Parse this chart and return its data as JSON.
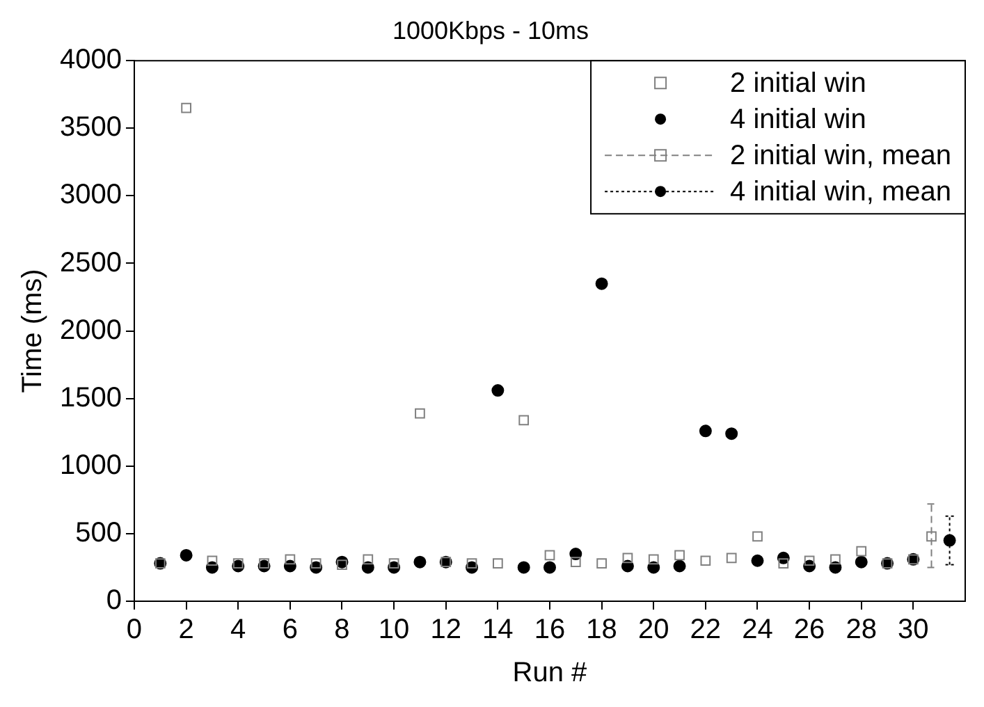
{
  "chart_data": {
    "type": "scatter",
    "title": "1000Kbps - 10ms",
    "xlabel": "Run #",
    "ylabel": "Time (ms)",
    "x": [
      1,
      2,
      3,
      4,
      5,
      6,
      7,
      8,
      9,
      10,
      11,
      12,
      13,
      14,
      15,
      16,
      17,
      18,
      19,
      20,
      21,
      22,
      23,
      24,
      25,
      26,
      27,
      28,
      29,
      30
    ],
    "xlim": [
      0,
      32
    ],
    "xticks": [
      0,
      2,
      4,
      6,
      8,
      10,
      12,
      14,
      16,
      18,
      20,
      22,
      24,
      26,
      28,
      30
    ],
    "ylim": [
      0,
      4000
    ],
    "yticks": [
      0,
      500,
      1000,
      1500,
      2000,
      2500,
      3000,
      3500,
      4000
    ],
    "legend": "top right",
    "series": [
      {
        "name": "2 initial win",
        "color": "#808080",
        "marker": "square",
        "values": [
          280,
          3650,
          300,
          280,
          280,
          310,
          280,
          270,
          310,
          280,
          1390,
          290,
          280,
          280,
          1340,
          340,
          290,
          280,
          320,
          310,
          340,
          300,
          320,
          480,
          280,
          300,
          310,
          370,
          280,
          310
        ]
      },
      {
        "name": "4 initial win",
        "color": "#000000",
        "marker": "circle",
        "values": [
          280,
          340,
          250,
          260,
          260,
          260,
          250,
          290,
          250,
          250,
          290,
          290,
          250,
          1560,
          250,
          250,
          350,
          2350,
          260,
          250,
          260,
          1260,
          1240,
          300,
          320,
          260,
          250,
          290,
          280,
          310
        ]
      },
      {
        "name": "2 initial win, mean",
        "color": "#808080",
        "marker": "square",
        "line_style": "dashed",
        "x": [
          30.7
        ],
        "values": [
          480
        ],
        "errors": [
          [
            250,
            720
          ]
        ]
      },
      {
        "name": "4 initial win, mean",
        "color": "#000000",
        "marker": "circle",
        "line_style": "dotted",
        "x": [
          31.4
        ],
        "values": [
          450
        ],
        "errors": [
          [
            270,
            630
          ]
        ]
      }
    ]
  }
}
